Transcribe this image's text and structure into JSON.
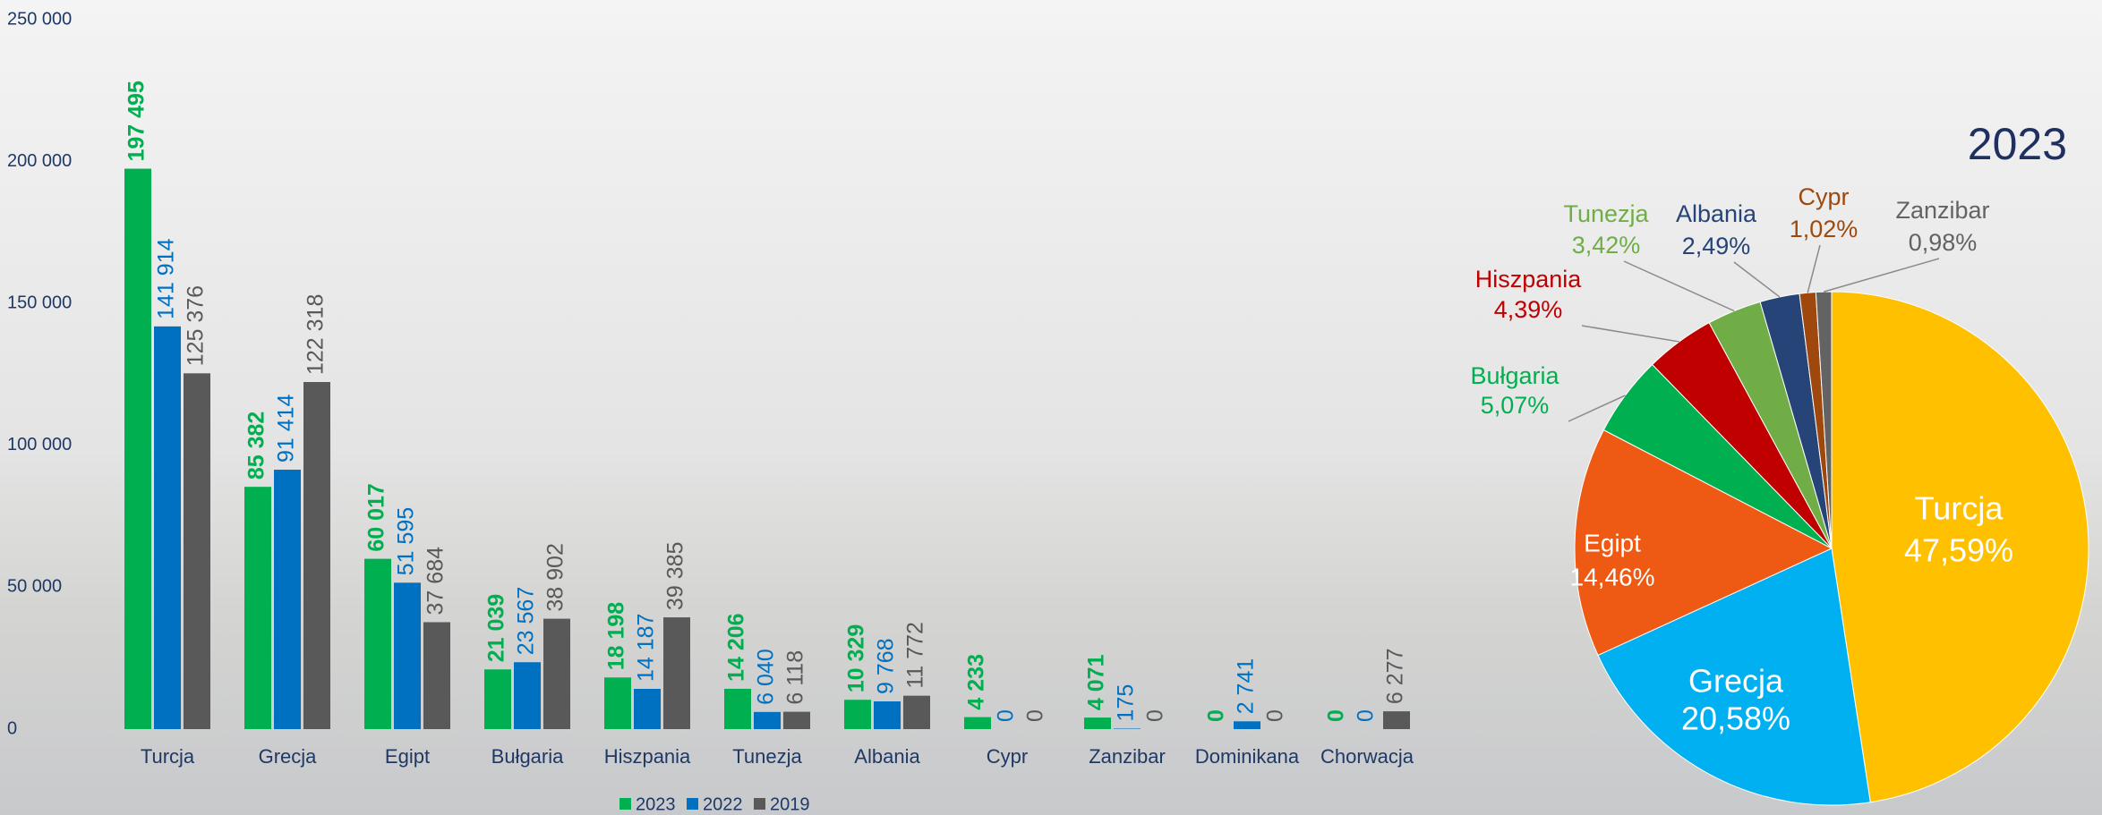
{
  "chart_data": [
    {
      "type": "bar",
      "categories": [
        "Turcja",
        "Grecja",
        "Egipt",
        "Bułgaria",
        "Hiszpania",
        "Tunezja",
        "Albania",
        "Cypr",
        "Zanzibar",
        "Dominikana",
        "Chorwacja"
      ],
      "series": [
        {
          "name": "2023",
          "color": "#00b050",
          "values": [
            197495,
            85382,
            60017,
            21039,
            18198,
            14206,
            10329,
            4233,
            4071,
            0,
            0
          ],
          "value_labels": [
            "197 495",
            "85 382",
            "60 017",
            "21 039",
            "18 198",
            "14 206",
            "10 329",
            "4 233",
            "4 071",
            "0",
            "0"
          ]
        },
        {
          "name": "2022",
          "color": "#0070c0",
          "values": [
            141914,
            91414,
            51595,
            23567,
            14187,
            6040,
            9768,
            0,
            175,
            2741,
            0
          ],
          "value_labels": [
            "141 914",
            "91 414",
            "51 595",
            "23 567",
            "14 187",
            "6 040",
            "9 768",
            "0",
            "175",
            "2 741",
            "0"
          ]
        },
        {
          "name": "2019",
          "color": "#595959",
          "values": [
            125376,
            122318,
            37684,
            38902,
            39385,
            6118,
            11772,
            0,
            0,
            0,
            6277
          ],
          "value_labels": [
            "125 376",
            "122 318",
            "37 684",
            "38 902",
            "39 385",
            "6 118",
            "11 772",
            "0",
            "0",
            "0",
            "6 277"
          ]
        }
      ],
      "ylim": [
        0,
        250000
      ],
      "yticks": [
        {
          "value": 0,
          "label": "0"
        },
        {
          "value": 50000,
          "label": "50 000"
        },
        {
          "value": 100000,
          "label": "100 000"
        },
        {
          "value": 150000,
          "label": "150 000"
        },
        {
          "value": 200000,
          "label": "200 000"
        },
        {
          "value": 250000,
          "label": "250 000"
        }
      ],
      "grid": false,
      "legend": "bottom"
    },
    {
      "type": "pie",
      "title": "2023",
      "categories": [
        "Turcja",
        "Grecja",
        "Egipt",
        "Bułgaria",
        "Hiszpania",
        "Tunezja",
        "Albania",
        "Cypr",
        "Zanzibar"
      ],
      "values": [
        47.59,
        20.58,
        14.46,
        5.07,
        4.39,
        3.42,
        2.49,
        1.02,
        0.98
      ],
      "value_labels": [
        "47,59%",
        "20,58%",
        "14,46%",
        "5,07%",
        "4,39%",
        "3,42%",
        "2,49%",
        "1,02%",
        "0,98%"
      ],
      "colors": [
        "#ffc000",
        "#00b0f0",
        "#ee5a14",
        "#00b050",
        "#c00000",
        "#70ad47",
        "#264478",
        "#9e480e",
        "#636363"
      ]
    }
  ]
}
